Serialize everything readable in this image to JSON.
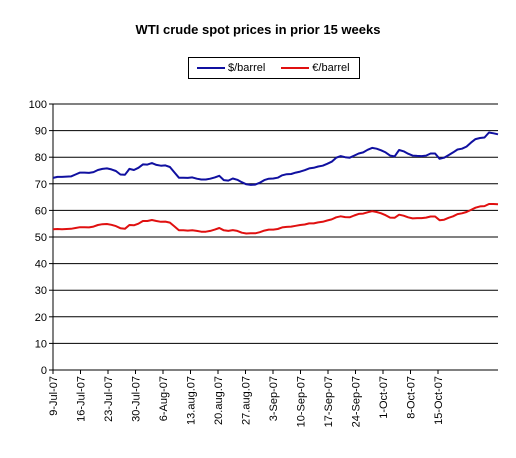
{
  "chart_data": {
    "type": "line",
    "title": "WTI crude spot prices in prior 15 weeks",
    "xlabel": "",
    "ylabel": "",
    "ylim": [
      0,
      100
    ],
    "yticks": [
      0,
      10,
      20,
      30,
      40,
      50,
      60,
      70,
      80,
      90,
      100
    ],
    "grid": true,
    "legend_position": "top-center",
    "x_tick_labels": [
      "9-Jul-07",
      "16-Jul-07",
      "23-Jul-07",
      "30-Jul-07",
      "6-Aug-07",
      "13.aug.07",
      "20.aug.07",
      "27.aug.07",
      "3-Sep-07",
      "10-Sep-07",
      "17-Sep-07",
      "24-Sep-07",
      "1-Oct-07",
      "8-Oct-07",
      "15-Oct-07"
    ],
    "series": [
      {
        "name": "$/barrel",
        "color": "#1010a0",
        "values": [
          72.2,
          72.6,
          72.6,
          72.7,
          72.8,
          73.5,
          74.2,
          74.2,
          74.1,
          74.4,
          75.2,
          75.6,
          75.8,
          75.4,
          74.8,
          73.5,
          73.4,
          75.6,
          75.2,
          76.0,
          77.3,
          77.2,
          77.8,
          77.1,
          76.8,
          76.9,
          76.3,
          74.3,
          72.3,
          72.3,
          72.2,
          72.4,
          71.9,
          71.6,
          71.6,
          71.9,
          72.4,
          73.0,
          71.4,
          71.2,
          72.0,
          71.5,
          70.6,
          69.8,
          69.6,
          69.7,
          70.4,
          71.4,
          71.9,
          72.0,
          72.3,
          73.2,
          73.6,
          73.7,
          74.2,
          74.6,
          75.1,
          75.8,
          76.0,
          76.5,
          76.8,
          77.5,
          78.3,
          79.8,
          80.4,
          80.0,
          79.8,
          80.6,
          81.4,
          81.8,
          82.8,
          83.5,
          83.2,
          82.6,
          81.8,
          80.6,
          80.3,
          82.7,
          82.2,
          81.3,
          80.6,
          80.5,
          80.4,
          80.6,
          81.4,
          81.4,
          79.4,
          79.8,
          80.8,
          81.8,
          82.9,
          83.2,
          84.0,
          85.5,
          86.8,
          87.2,
          87.4,
          89.3,
          89.0,
          88.6
        ]
      },
      {
        "name": "€/barrel",
        "color": "#e01010",
        "values": [
          52.9,
          53.0,
          52.9,
          53.0,
          53.1,
          53.4,
          53.7,
          53.7,
          53.6,
          53.9,
          54.5,
          54.8,
          54.9,
          54.6,
          54.1,
          53.3,
          53.1,
          54.5,
          54.4,
          55.0,
          56.0,
          56.0,
          56.4,
          56.0,
          55.7,
          55.8,
          55.4,
          54.0,
          52.5,
          52.5,
          52.4,
          52.5,
          52.3,
          52.0,
          52.0,
          52.3,
          52.8,
          53.4,
          52.5,
          52.3,
          52.6,
          52.3,
          51.6,
          51.3,
          51.4,
          51.4,
          51.8,
          52.4,
          52.8,
          52.8,
          53.0,
          53.6,
          53.8,
          53.9,
          54.2,
          54.5,
          54.7,
          55.1,
          55.1,
          55.5,
          55.7,
          56.2,
          56.6,
          57.4,
          57.8,
          57.5,
          57.4,
          58.1,
          58.7,
          58.8,
          59.3,
          59.7,
          59.4,
          58.9,
          58.2,
          57.3,
          57.2,
          58.4,
          58.0,
          57.4,
          57.0,
          57.1,
          57.1,
          57.3,
          57.7,
          57.7,
          56.3,
          56.5,
          57.2,
          57.8,
          58.6,
          58.9,
          59.4,
          60.2,
          61.0,
          61.5,
          61.6,
          62.4,
          62.4,
          62.3
        ]
      }
    ]
  }
}
